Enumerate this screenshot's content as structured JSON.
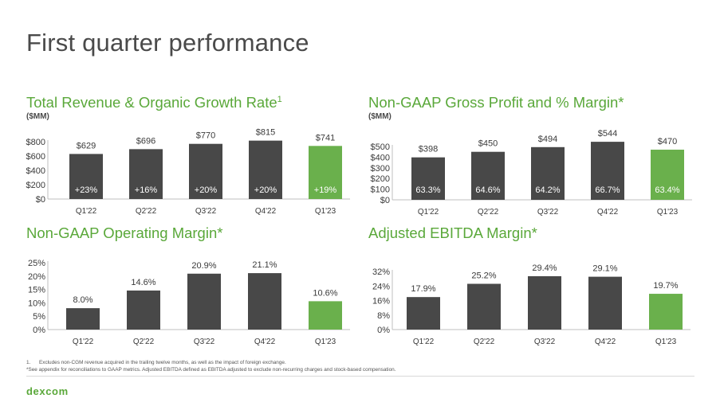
{
  "page_title": "First quarter performance",
  "brand_color": "#5aa83a",
  "bar_dark_color": "#484848",
  "bar_highlight_color": "#6ab04c",
  "panels": {
    "revenue": {
      "title": "Total Revenue & Organic Growth Rate",
      "title_sup": "1",
      "subtitle": "($MM)"
    },
    "gross": {
      "title": "Non-GAAP Gross Profit and % Margin*",
      "subtitle": "($MM)"
    },
    "opmargin": {
      "title": "Non-GAAP Operating Margin*"
    },
    "ebitda": {
      "title": "Adjusted EBITDA Margin*"
    }
  },
  "chart_data": [
    {
      "type": "bar",
      "title": "Total Revenue & Organic Growth Rate",
      "ylabel": "($MM)",
      "categories": [
        "Q1'22",
        "Q2'22",
        "Q3'22",
        "Q4'22",
        "Q1'23"
      ],
      "values": [
        629,
        696,
        770,
        815,
        741
      ],
      "value_labels": [
        "$629",
        "$696",
        "$770",
        "$815",
        "$741"
      ],
      "inner_labels": [
        "+23%",
        "+16%",
        "+20%",
        "+20%",
        "+19%"
      ],
      "yticks": [
        "$0",
        "$200",
        "$400",
        "$600",
        "$800"
      ],
      "ylim": [
        0,
        800
      ],
      "highlight_index": 4
    },
    {
      "type": "bar",
      "title": "Non-GAAP Gross Profit and % Margin*",
      "ylabel": "($MM)",
      "categories": [
        "Q1'22",
        "Q2'22",
        "Q3'22",
        "Q4'22",
        "Q1'23"
      ],
      "values": [
        398,
        450,
        494,
        544,
        470
      ],
      "value_labels": [
        "$398",
        "$450",
        "$494",
        "$544",
        "$470"
      ],
      "inner_labels": [
        "63.3%",
        "64.6%",
        "64.2%",
        "66.7%",
        "63.4%"
      ],
      "yticks": [
        "$0",
        "$100",
        "$200",
        "$300",
        "$400",
        "$500"
      ],
      "ylim": [
        0,
        500
      ],
      "highlight_index": 4
    },
    {
      "type": "bar",
      "title": "Non-GAAP Operating Margin*",
      "categories": [
        "Q1'22",
        "Q2'22",
        "Q3'22",
        "Q4'22",
        "Q1'23"
      ],
      "values": [
        8.0,
        14.6,
        20.9,
        21.1,
        10.6
      ],
      "value_labels": [
        "8.0%",
        "14.6%",
        "20.9%",
        "21.1%",
        "10.6%"
      ],
      "yticks": [
        "0%",
        "5%",
        "10%",
        "15%",
        "20%",
        "25%"
      ],
      "ylim": [
        0,
        25
      ],
      "highlight_index": 4
    },
    {
      "type": "bar",
      "title": "Adjusted EBITDA Margin*",
      "categories": [
        "Q1'22",
        "Q2'22",
        "Q3'22",
        "Q4'22",
        "Q1'23"
      ],
      "values": [
        17.9,
        25.2,
        29.4,
        29.1,
        19.7
      ],
      "value_labels": [
        "17.9%",
        "25.2%",
        "29.4%",
        "29.1%",
        "19.7%"
      ],
      "yticks": [
        "0%",
        "8%",
        "16%",
        "24%",
        "32%"
      ],
      "ylim": [
        0,
        32
      ],
      "highlight_index": 4
    }
  ],
  "footnotes": [
    "1.      Excludes non-CGM revenue acquired in the trailing twelve months, as well as the impact of foreign exchange.",
    "*See appendix for reconciliations to GAAP metrics. Adjusted EBITDA defined as EBITDA adjusted to exclude non-recurring charges and stock-based compensation."
  ],
  "logo_text": "dexcom"
}
